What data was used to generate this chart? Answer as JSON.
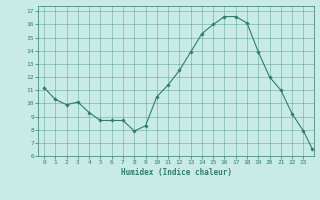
{
  "x_vals": [
    0,
    1,
    2,
    3,
    4,
    5,
    6,
    7,
    8,
    9,
    10,
    11,
    12,
    13,
    14,
    15,
    16,
    17,
    18,
    19,
    20,
    21,
    22,
    23,
    23.8
  ],
  "y_vals": [
    11.2,
    10.3,
    9.9,
    10.1,
    9.3,
    8.7,
    8.7,
    8.7,
    7.9,
    8.3,
    10.5,
    11.4,
    12.5,
    13.9,
    15.3,
    16.0,
    16.6,
    16.6,
    16.1,
    13.9,
    12.0,
    11.0,
    9.2,
    7.9,
    6.5
  ],
  "line_color": "#2e7d6e",
  "marker": "D",
  "marker_size": 1.8,
  "bg_color": "#c8ebe8",
  "grid_color": "#2e7d6e",
  "xlabel": "Humidex (Indice chaleur)",
  "ylim": [
    6,
    17.4
  ],
  "xlim": [
    -0.5,
    23.9
  ],
  "yticks": [
    6,
    7,
    8,
    9,
    10,
    11,
    12,
    13,
    14,
    15,
    16,
    17
  ],
  "xticks": [
    0,
    1,
    2,
    3,
    4,
    5,
    6,
    7,
    8,
    9,
    10,
    11,
    12,
    13,
    14,
    15,
    16,
    17,
    18,
    19,
    20,
    21,
    22,
    23
  ]
}
